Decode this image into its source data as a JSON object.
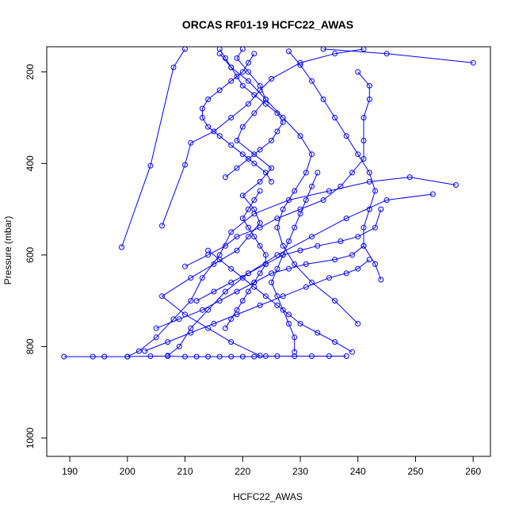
{
  "chart_data": {
    "type": "line",
    "title": "ORCAS RF01-19 HCFC22_AWAS",
    "xlabel": "HCFC22_AWAS",
    "ylabel": "Pressure (mbar)",
    "xlim": [
      186,
      263
    ],
    "ylim": [
      1040,
      145
    ],
    "y_axis_inverted": true,
    "x_ticks": [
      "190",
      "200",
      "210",
      "220",
      "230",
      "240",
      "250",
      "260"
    ],
    "y_ticks": [
      "200",
      "400",
      "600",
      "800",
      "1000"
    ],
    "grid": false,
    "legend": "none",
    "markers": "open-circle",
    "series_color": "#0000ff",
    "series": [
      {
        "values": [
          [
            223,
            820
          ],
          [
            218,
            790
          ],
          [
            214,
            760
          ],
          [
            210,
            730
          ],
          [
            206,
            690
          ],
          [
            211,
            650
          ],
          [
            215,
            620
          ],
          [
            219,
            590
          ],
          [
            221,
            560
          ],
          [
            223,
            530
          ],
          [
            222,
            500
          ],
          [
            220,
            470
          ],
          [
            223,
            440
          ],
          [
            225,
            410
          ],
          [
            222,
            380
          ],
          [
            219,
            350
          ],
          [
            220,
            320
          ],
          [
            222,
            290
          ],
          [
            224,
            260
          ],
          [
            223,
            230
          ],
          [
            221,
            200
          ],
          [
            219,
            170
          ],
          [
            220,
            150
          ]
        ]
      },
      {
        "values": [
          [
            189,
            822
          ],
          [
            194,
            822
          ],
          [
            196,
            822
          ],
          [
            200,
            822
          ],
          [
            204,
            821
          ],
          [
            207,
            821
          ],
          [
            210,
            822
          ],
          [
            212,
            822
          ],
          [
            214,
            822
          ],
          [
            216,
            822
          ],
          [
            218,
            822
          ],
          [
            220,
            822
          ],
          [
            222,
            822
          ],
          [
            224,
            821
          ],
          [
            226,
            821
          ],
          [
            229,
            821
          ],
          [
            232,
            821
          ],
          [
            235,
            821
          ],
          [
            238,
            821
          ]
        ]
      },
      {
        "values": [
          [
            199,
            583
          ],
          [
            204,
            405
          ],
          [
            208,
            190
          ],
          [
            210,
            150
          ]
        ]
      },
      {
        "values": [
          [
            206,
            536
          ],
          [
            210,
            403
          ],
          [
            211,
            355
          ],
          [
            215,
            330
          ],
          [
            218,
            300
          ],
          [
            221,
            270
          ],
          [
            223,
            240
          ],
          [
            225,
            215
          ],
          [
            230,
            180
          ],
          [
            236,
            160
          ],
          [
            241,
            150
          ]
        ]
      },
      {
        "values": [
          [
            260,
            180
          ],
          [
            245,
            160
          ],
          [
            234,
            150
          ]
        ]
      },
      {
        "values": [
          [
            257,
            447
          ],
          [
            249,
            430
          ],
          [
            242,
            440
          ],
          [
            235,
            460
          ],
          [
            228,
            480
          ],
          [
            222,
            510
          ],
          [
            218,
            550
          ],
          [
            216,
            600
          ],
          [
            213,
            650
          ],
          [
            211,
            700
          ],
          [
            208,
            740
          ],
          [
            205,
            780
          ],
          [
            202,
            810
          ],
          [
            200,
            822
          ]
        ]
      },
      {
        "values": [
          [
            253,
            467
          ],
          [
            245,
            480
          ],
          [
            238,
            520
          ],
          [
            232,
            560
          ],
          [
            226,
            600
          ],
          [
            221,
            640
          ],
          [
            217,
            680
          ],
          [
            214,
            720
          ],
          [
            211,
            760
          ],
          [
            209,
            800
          ],
          [
            207,
            820
          ]
        ]
      },
      {
        "values": [
          [
            240,
            750
          ],
          [
            236,
            700
          ],
          [
            232,
            660
          ],
          [
            229,
            620
          ],
          [
            227,
            580
          ],
          [
            226,
            540
          ],
          [
            227,
            500
          ],
          [
            229,
            460
          ],
          [
            231,
            420
          ],
          [
            232,
            380
          ],
          [
            230,
            340
          ],
          [
            227,
            300
          ],
          [
            224,
            260
          ],
          [
            221,
            220
          ],
          [
            218,
            190
          ],
          [
            216,
            160
          ]
        ]
      },
      {
        "values": [
          [
            244,
            654
          ],
          [
            243,
            620
          ],
          [
            241,
            580
          ],
          [
            241,
            540
          ],
          [
            242,
            500
          ],
          [
            243,
            460
          ],
          [
            242,
            420
          ],
          [
            240,
            380
          ],
          [
            238,
            340
          ],
          [
            236,
            300
          ],
          [
            234,
            260
          ],
          [
            232,
            220
          ],
          [
            230,
            185
          ],
          [
            228,
            155
          ]
        ]
      },
      {
        "values": [
          [
            210,
            625
          ],
          [
            214,
            600
          ],
          [
            217,
            580
          ],
          [
            219,
            560
          ],
          [
            223,
            540
          ],
          [
            226,
            520
          ],
          [
            230,
            500
          ],
          [
            234,
            480
          ],
          [
            237,
            450
          ],
          [
            239,
            420
          ],
          [
            241,
            390
          ],
          [
            241,
            350
          ],
          [
            241,
            300
          ],
          [
            242,
            260
          ],
          [
            242,
            230
          ],
          [
            240,
            200
          ]
        ]
      },
      {
        "values": [
          [
            212,
            700
          ],
          [
            215,
            680
          ],
          [
            218,
            660
          ],
          [
            221,
            640
          ],
          [
            224,
            620
          ],
          [
            227,
            600
          ],
          [
            230,
            590
          ],
          [
            233,
            580
          ],
          [
            237,
            570
          ],
          [
            240,
            560
          ],
          [
            243,
            540
          ],
          [
            244,
            500
          ]
        ]
      },
      {
        "values": [
          [
            205,
            760
          ],
          [
            209,
            740
          ],
          [
            213,
            720
          ],
          [
            216,
            700
          ],
          [
            219,
            680
          ],
          [
            222,
            660
          ],
          [
            225,
            640
          ],
          [
            228,
            630
          ],
          [
            231,
            620
          ],
          [
            236,
            610
          ],
          [
            239,
            600
          ],
          [
            241,
            580
          ]
        ]
      },
      {
        "values": [
          [
            203,
            810
          ],
          [
            207,
            790
          ],
          [
            211,
            770
          ],
          [
            215,
            750
          ],
          [
            219,
            730
          ],
          [
            223,
            710
          ],
          [
            227,
            690
          ],
          [
            231,
            670
          ],
          [
            235,
            650
          ],
          [
            238,
            640
          ],
          [
            240,
            630
          ],
          [
            242,
            610
          ]
        ]
      },
      {
        "values": [
          [
            217,
            430
          ],
          [
            219,
            410
          ],
          [
            221,
            390
          ],
          [
            223,
            370
          ],
          [
            225,
            350
          ],
          [
            226,
            330
          ],
          [
            227,
            310
          ],
          [
            226,
            290
          ],
          [
            224,
            270
          ],
          [
            222,
            250
          ],
          [
            220,
            230
          ],
          [
            219,
            210
          ],
          [
            218,
            190
          ],
          [
            217,
            170
          ],
          [
            216,
            150
          ]
        ]
      },
      {
        "values": [
          [
            225,
            440
          ],
          [
            224,
            420
          ],
          [
            222,
            400
          ],
          [
            220,
            380
          ],
          [
            218,
            360
          ],
          [
            216,
            340
          ],
          [
            214,
            320
          ],
          [
            213,
            300
          ],
          [
            213,
            280
          ],
          [
            214,
            260
          ],
          [
            216,
            240
          ],
          [
            218,
            220
          ],
          [
            220,
            200
          ],
          [
            221,
            180
          ],
          [
            222,
            160
          ]
        ]
      },
      {
        "values": [
          [
            217,
            760
          ],
          [
            218,
            740
          ],
          [
            219,
            720
          ],
          [
            220,
            700
          ],
          [
            221,
            680
          ],
          [
            222,
            660
          ],
          [
            223,
            640
          ],
          [
            224,
            620
          ],
          [
            224,
            600
          ],
          [
            223,
            580
          ],
          [
            222,
            560
          ],
          [
            221,
            540
          ],
          [
            220,
            520
          ],
          [
            221,
            500
          ],
          [
            222,
            480
          ],
          [
            223,
            460
          ]
        ]
      },
      {
        "values": [
          [
            229,
            812
          ],
          [
            229,
            780
          ],
          [
            228,
            750
          ],
          [
            227,
            720
          ],
          [
            226,
            690
          ],
          [
            225,
            660
          ],
          [
            226,
            630
          ],
          [
            227,
            600
          ],
          [
            228,
            570
          ],
          [
            229,
            540
          ],
          [
            230,
            510
          ],
          [
            231,
            480
          ],
          [
            232,
            450
          ],
          [
            233,
            420
          ]
        ]
      },
      {
        "values": [
          [
            239,
            812
          ],
          [
            236,
            790
          ],
          [
            233,
            770
          ],
          [
            230,
            750
          ],
          [
            228,
            730
          ],
          [
            226,
            710
          ],
          [
            224,
            690
          ],
          [
            222,
            670
          ],
          [
            220,
            650
          ],
          [
            218,
            630
          ],
          [
            216,
            610
          ],
          [
            214,
            590
          ]
        ]
      }
    ]
  }
}
